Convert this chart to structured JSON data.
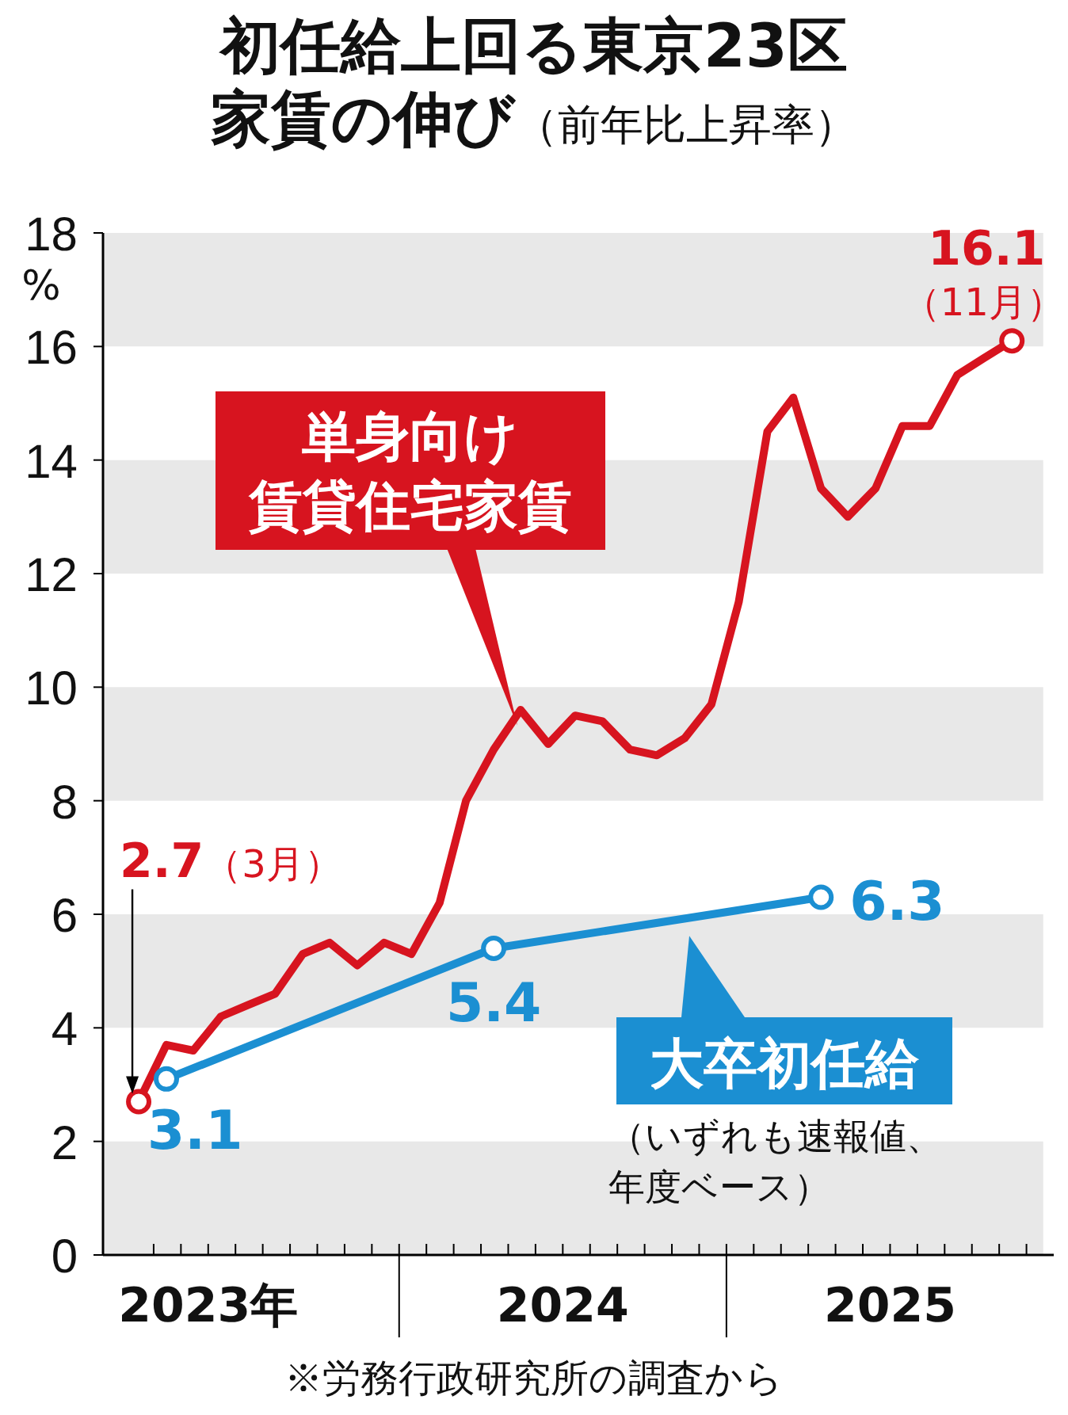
{
  "chart_data": {
    "type": "line",
    "title": "初任給上回る東京23区家賃の伸び",
    "subtitle": "（前年比上昇率）",
    "ylabel": "%",
    "x": [
      "2023-03-15",
      "2023-04-15",
      "2023-05-15",
      "2023-06-15",
      "2023-07-15",
      "2023-08-15",
      "2023-09-15",
      "2023-10-15",
      "2023-11-15",
      "2023-12-15",
      "2024-01-15",
      "2024-02-15",
      "2024-03-15",
      "2024-04-15",
      "2024-05-15",
      "2024-06-15",
      "2024-07-15",
      "2024-08-15",
      "2024-09-15",
      "2024-10-15",
      "2024-11-15",
      "2024-12-15",
      "2025-01-15",
      "2025-02-15",
      "2025-03-15",
      "2025-04-15",
      "2025-05-15",
      "2025-06-15",
      "2025-07-15",
      "2025-08-15",
      "2025-09-15",
      "2025-10-15",
      "2025-11-15"
    ],
    "series": [
      {
        "name": "単身向け賃貸住宅家賃",
        "color": "#d7141f",
        "values": [
          2.7,
          3.7,
          3.6,
          4.2,
          4.4,
          4.6,
          5.3,
          5.5,
          5.1,
          5.5,
          5.3,
          6.2,
          8.0,
          8.9,
          9.6,
          9.0,
          9.5,
          9.4,
          8.9,
          8.8,
          9.1,
          9.7,
          11.5,
          14.5,
          15.1,
          13.5,
          13.0,
          13.5,
          14.6,
          14.6,
          15.5,
          15.8,
          16.1
        ]
      },
      {
        "name": "大卒初任給",
        "color": "#1b8fd2",
        "marker": "circle",
        "data_labels": true,
        "x": [
          "2023-04-15",
          "2024-04-15",
          "2025-04-15"
        ],
        "values": [
          3.1,
          5.4,
          6.3
        ]
      }
    ],
    "ylim": [
      0,
      18
    ],
    "yticks": [
      0,
      2,
      4,
      6,
      8,
      10,
      12,
      14,
      16,
      18
    ],
    "xlim": [
      "2023-02-05",
      "2026-01"
    ],
    "xticks": [
      {
        "value": "2023-04",
        "label": null
      },
      {
        "value": "2023-05",
        "label": null
      },
      {
        "value": "2023-06",
        "label": "2023年"
      },
      {
        "value": "2023-07",
        "label": null
      },
      {
        "value": "2023-08",
        "label": null
      },
      {
        "value": "2023-09",
        "label": null
      },
      {
        "value": "2023-10",
        "label": null
      },
      {
        "value": "2023-11",
        "label": null
      },
      {
        "value": "2023-12",
        "label": null
      },
      {
        "value": "2024-01",
        "label": null
      },
      {
        "value": "2024-02",
        "label": null
      },
      {
        "value": "2024-03",
        "label": null
      },
      {
        "value": "2024-04",
        "label": null
      },
      {
        "value": "2024-05",
        "label": null
      },
      {
        "value": "2024-06",
        "label": null
      },
      {
        "value": "2024-07",
        "label": "2024"
      },
      {
        "value": "2024-08",
        "label": null
      },
      {
        "value": "2024-09",
        "label": null
      },
      {
        "value": "2024-10",
        "label": null
      },
      {
        "value": "2024-11",
        "label": null
      },
      {
        "value": "2024-12",
        "label": null
      },
      {
        "value": "2025-01",
        "label": null
      },
      {
        "value": "2025-02",
        "label": null
      },
      {
        "value": "2025-03",
        "label": null
      },
      {
        "value": "2025-04",
        "label": null
      },
      {
        "value": "2025-05",
        "label": null
      },
      {
        "value": "2025-06",
        "label": null
      },
      {
        "value": "2025-07",
        "label": "2025"
      },
      {
        "value": "2025-08",
        "label": null
      },
      {
        "value": "2025-09",
        "label": null
      },
      {
        "value": "2025-10",
        "label": null
      },
      {
        "value": "2025-11",
        "label": null
      },
      {
        "value": "2025-12",
        "label": null
      }
    ],
    "bands": [
      {
        "axis": "y",
        "from": 0,
        "to": 2,
        "color": "#e8e8e8"
      },
      {
        "axis": "y",
        "from": 4,
        "to": 6,
        "color": "#e8e8e8"
      },
      {
        "axis": "y",
        "from": 8,
        "to": 10,
        "color": "#e8e8e8"
      },
      {
        "axis": "y",
        "from": 12,
        "to": 14,
        "color": "#e8e8e8"
      },
      {
        "axis": "y",
        "from": 16,
        "to": 18,
        "color": "#e8e8e8"
      }
    ],
    "line_style": "solid",
    "annotations": [
      "2.7（3月）",
      {
        "text": "16.1（11月）",
        "x": "2025-11-15",
        "y": 16.1
      },
      "（いずれも速報値、年度ベース）",
      "※労務行政研究所の調査から"
    ]
  }
}
